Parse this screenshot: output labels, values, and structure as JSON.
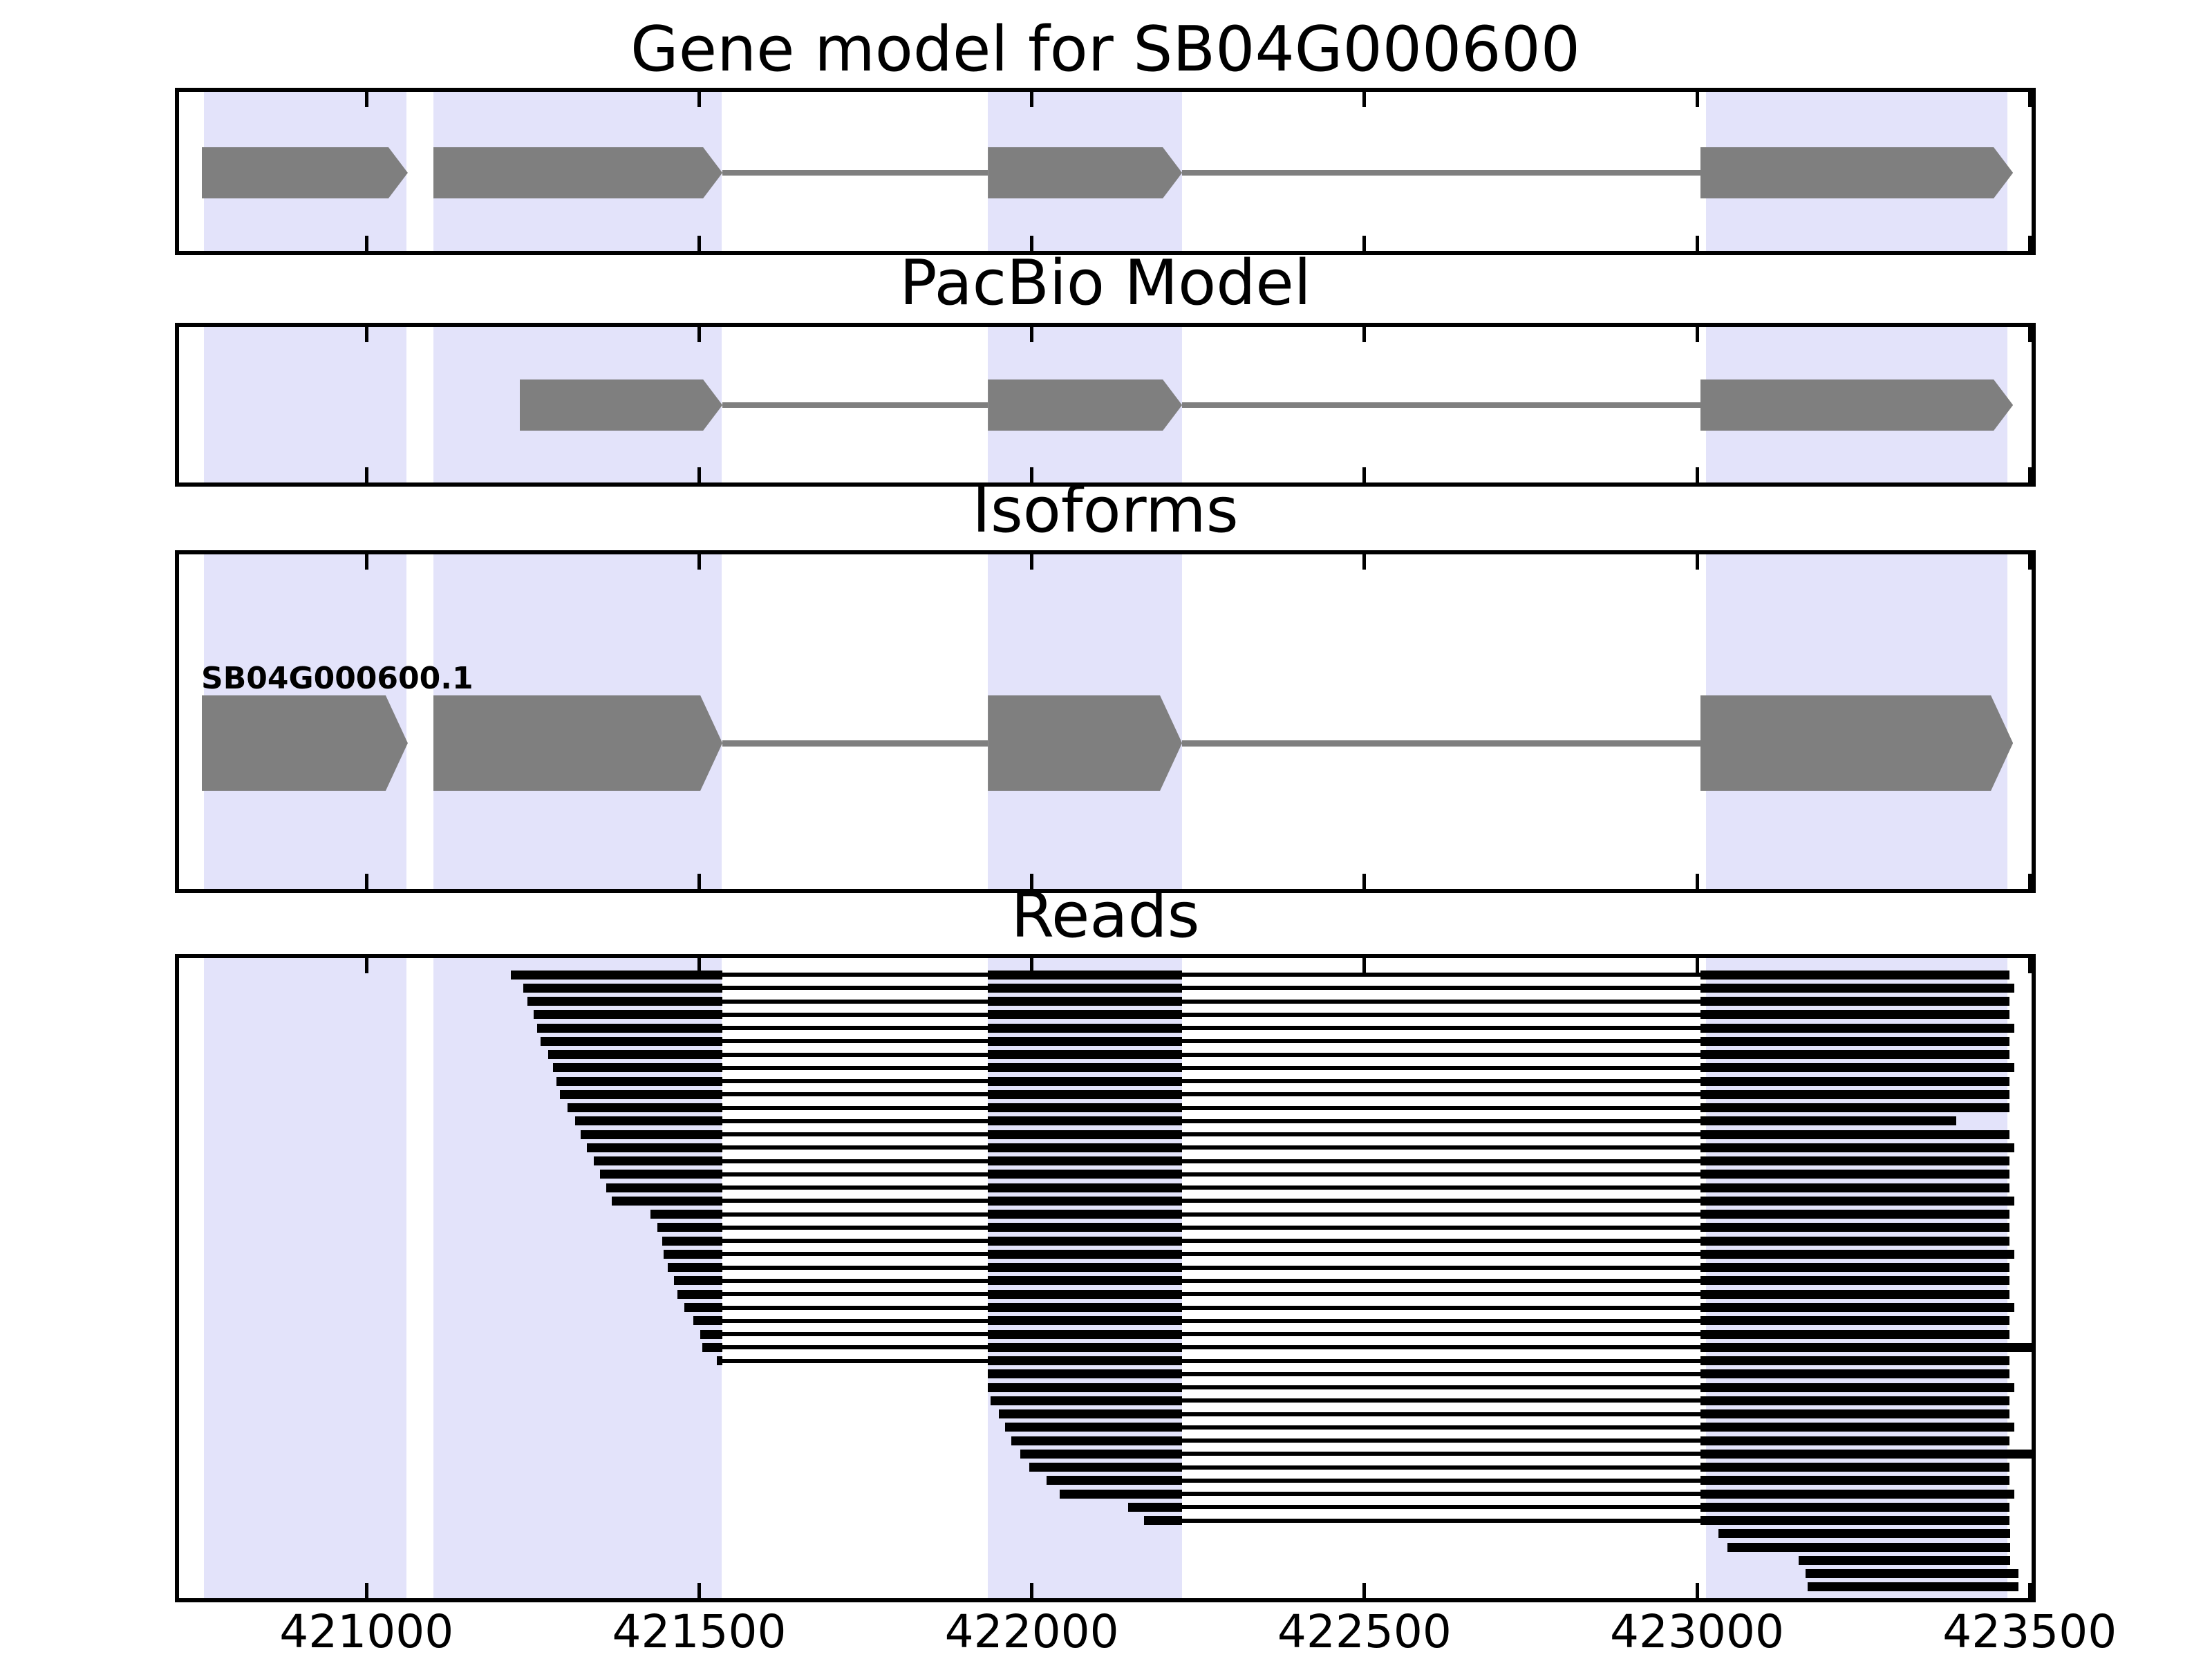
{
  "figure_title": "Gene model for SB04G000600",
  "chart_data": {
    "type": "genomic-tracks",
    "title": "Gene model for SB04G000600",
    "x_axis": {
      "tick_values": [
        421000,
        421500,
        422000,
        422500,
        423000,
        423500
      ],
      "tick_labels": [
        "421000",
        "421500",
        "422000",
        "422500",
        "423000",
        "423500"
      ],
      "range": [
        420715,
        423506
      ]
    },
    "highlight_regions": [
      [
        420756,
        421060
      ],
      [
        421101,
        421534
      ],
      [
        421934,
        422226
      ],
      [
        423013,
        423466
      ]
    ],
    "tracks": [
      {
        "name": "Gene model for SB04G000600",
        "kind": "gene-model",
        "strand": "+",
        "exons": [
          [
            420752,
            421062
          ],
          [
            421100,
            421535
          ],
          [
            421934,
            422226
          ],
          [
            423005,
            423475
          ]
        ]
      },
      {
        "name": "PacBio Model",
        "kind": "gene-model",
        "strand": "+",
        "exons": [
          [
            421230,
            421535
          ],
          [
            421934,
            422226
          ],
          [
            423005,
            423475
          ]
        ]
      },
      {
        "name": "Isoforms",
        "kind": "isoform-list",
        "isoforms": [
          {
            "id": "SB04G000600.1",
            "strand": "+",
            "exons": [
              [
                420752,
                421062
              ],
              [
                421100,
                421535
              ],
              [
                421934,
                422226
              ],
              [
                423005,
                423475
              ]
            ]
          }
        ]
      },
      {
        "name": "Reads",
        "kind": "read-alignments",
        "aligned_blocks": [
          [
            420715,
            421535
          ],
          [
            421934,
            422226
          ],
          [
            423005,
            423506
          ]
        ],
        "reads": [
          [
            421217,
            423470
          ],
          [
            421236,
            423477
          ],
          [
            421242,
            423470
          ],
          [
            421251,
            423470
          ],
          [
            421256,
            423477
          ],
          [
            421262,
            423470
          ],
          [
            421273,
            423470
          ],
          [
            421280,
            423477
          ],
          [
            421285,
            423470
          ],
          [
            421291,
            423470
          ],
          [
            421302,
            423470
          ],
          [
            421314,
            423390
          ],
          [
            421322,
            423470
          ],
          [
            421331,
            423477
          ],
          [
            421342,
            423470
          ],
          [
            421351,
            423470
          ],
          [
            421360,
            423470
          ],
          [
            421369,
            423477
          ],
          [
            421427,
            423470
          ],
          [
            421437,
            423470
          ],
          [
            421444,
            423470
          ],
          [
            421447,
            423477
          ],
          [
            421453,
            423470
          ],
          [
            421462,
            423470
          ],
          [
            421467,
            423470
          ],
          [
            421478,
            423477
          ],
          [
            421491,
            423470
          ],
          [
            421502,
            423470
          ],
          [
            421505,
            423504
          ],
          [
            421527,
            423470
          ],
          [
            421934,
            423470
          ],
          [
            421934,
            423477
          ],
          [
            421938,
            423470
          ],
          [
            421950,
            423470
          ],
          [
            421960,
            423477
          ],
          [
            421969,
            423470
          ],
          [
            421983,
            423504
          ],
          [
            421996,
            423470
          ],
          [
            422022,
            423470
          ],
          [
            422042,
            423477
          ],
          [
            422145,
            423470
          ],
          [
            422169,
            423470
          ],
          [
            423032,
            423471
          ],
          [
            423046,
            423471
          ],
          [
            423153,
            423471
          ],
          [
            423163,
            423483
          ],
          [
            423166,
            423483
          ]
        ]
      }
    ],
    "colors": {
      "exon": "#7F7F7F",
      "intron_line": "#7F7F7F",
      "highlight_band": "#E3E3FA",
      "read": "#000000",
      "border": "#000000",
      "background": "#FFFFFF",
      "text": "#000000"
    }
  }
}
